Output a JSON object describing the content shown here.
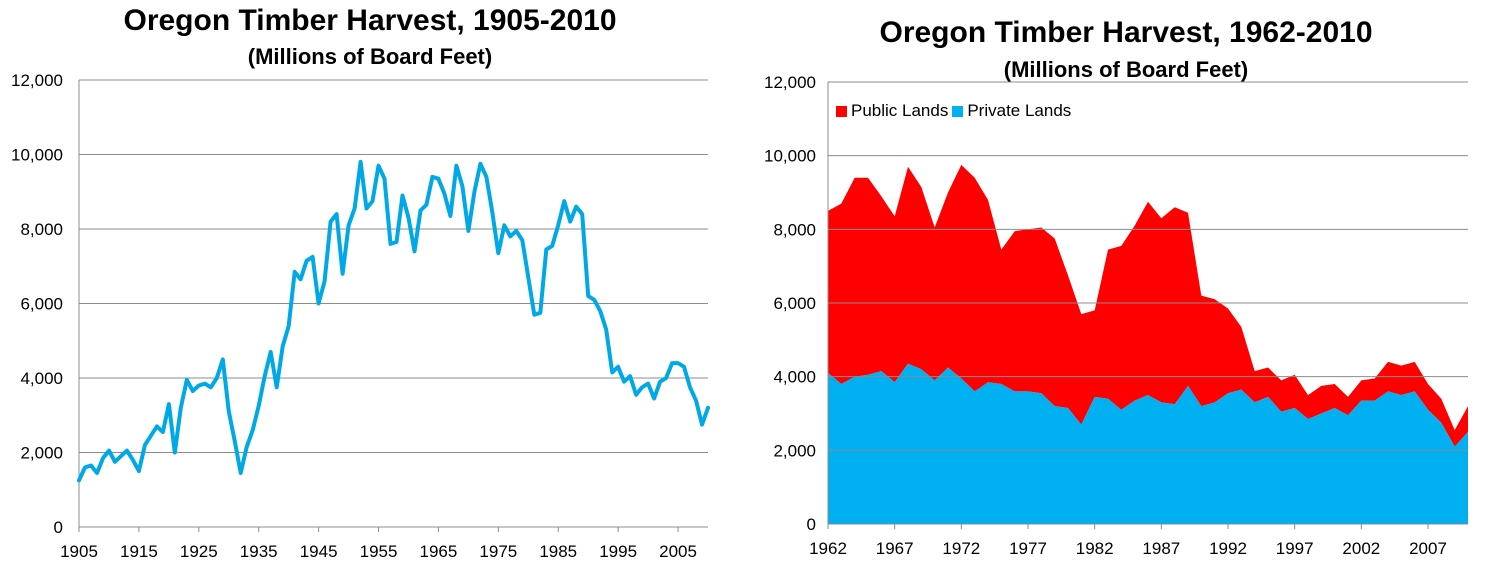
{
  "chart_data": [
    {
      "type": "line",
      "title": "Oregon Timber Harvest, 1905-2010",
      "subtitle": "(Millions of Board Feet)",
      "xlabel": "",
      "ylabel": "",
      "xlim": [
        1905,
        2010
      ],
      "ylim": [
        0,
        12000
      ],
      "yticks": [
        "0",
        "2,000",
        "4,000",
        "6,000",
        "8,000",
        "10,000",
        "12,000"
      ],
      "xticks": [
        "1905",
        "1915",
        "1925",
        "1935",
        "1945",
        "1955",
        "1965",
        "1975",
        "1985",
        "1995",
        "2005"
      ],
      "grid": true,
      "legend": "none",
      "colors": {
        "line": "#00A9E6",
        "grid": "#8C8C8C"
      },
      "series": [
        {
          "x": [
            1905,
            1906,
            1907,
            1908,
            1909,
            1910,
            1911,
            1912,
            1913,
            1914,
            1915,
            1916,
            1917,
            1918,
            1919,
            1920,
            1921,
            1922,
            1923,
            1924,
            1925,
            1926,
            1927,
            1928,
            1929,
            1930,
            1931,
            1932,
            1933,
            1934,
            1935,
            1936,
            1937,
            1938,
            1939,
            1940,
            1941,
            1942,
            1943,
            1944,
            1945,
            1946,
            1947,
            1948,
            1949,
            1950,
            1951,
            1952,
            1953,
            1954,
            1955,
            1956,
            1957,
            1958,
            1959,
            1960,
            1961,
            1962,
            1963,
            1964,
            1965,
            1966,
            1967,
            1968,
            1969,
            1970,
            1971,
            1972,
            1973,
            1974,
            1975,
            1976,
            1977,
            1978,
            1979,
            1980,
            1981,
            1982,
            1983,
            1984,
            1985,
            1986,
            1987,
            1988,
            1989,
            1990,
            1991,
            1992,
            1993,
            1994,
            1995,
            1996,
            1997,
            1998,
            1999,
            2000,
            2001,
            2002,
            2003,
            2004,
            2005,
            2006,
            2007,
            2008,
            2009,
            2010
          ],
          "values": [
            1250,
            1600,
            1650,
            1450,
            1850,
            2050,
            1750,
            1900,
            2050,
            1800,
            1500,
            2200,
            2450,
            2700,
            2550,
            3300,
            2000,
            3200,
            3950,
            3650,
            3800,
            3850,
            3750,
            4000,
            4500,
            3100,
            2300,
            1450,
            2150,
            2600,
            3250,
            4050,
            4700,
            3750,
            4850,
            5400,
            6850,
            6650,
            7150,
            7250,
            6000,
            6600,
            8200,
            8400,
            6800,
            8100,
            8550,
            9800,
            8550,
            8750,
            9700,
            9350,
            7600,
            7650,
            8900,
            8300,
            7400,
            8500,
            8650,
            9400,
            9350,
            8950,
            8350,
            9700,
            9150,
            7950,
            9000,
            9750,
            9400,
            8450,
            7350,
            8100,
            7800,
            7950,
            7700,
            6700,
            5700,
            5750,
            7450,
            7550,
            8100,
            8750,
            8200,
            8600,
            8400,
            6200,
            6100,
            5800,
            5300,
            4150,
            4300,
            3900,
            4050,
            3550,
            3750,
            3850,
            3450,
            3900,
            4000,
            4400,
            4400,
            4300,
            3750,
            3400,
            2750,
            3200
          ]
        }
      ]
    },
    {
      "type": "area",
      "stacked": true,
      "title": "Oregon Timber Harvest, 1962-2010",
      "subtitle": "(Millions of Board Feet)",
      "xlabel": "",
      "ylabel": "",
      "xlim": [
        1962,
        2010
      ],
      "ylim": [
        0,
        12000
      ],
      "yticks": [
        "0",
        "2,000",
        "4,000",
        "6,000",
        "8,000",
        "10,000",
        "12,000"
      ],
      "xticks": [
        "1962",
        "1967",
        "1972",
        "1977",
        "1982",
        "1987",
        "1992",
        "1997",
        "2002",
        "2007"
      ],
      "grid": true,
      "legend": "top-left",
      "x": [
        1962,
        1963,
        1964,
        1965,
        1966,
        1967,
        1968,
        1969,
        1970,
        1971,
        1972,
        1973,
        1974,
        1975,
        1976,
        1977,
        1978,
        1979,
        1980,
        1981,
        1982,
        1983,
        1984,
        1985,
        1986,
        1987,
        1988,
        1989,
        1990,
        1991,
        1992,
        1993,
        1994,
        1995,
        1996,
        1997,
        1998,
        1999,
        2000,
        2001,
        2002,
        2003,
        2004,
        2005,
        2006,
        2007,
        2008,
        2009,
        2010
      ],
      "series": [
        {
          "name": "Public Lands",
          "color": "#FF0000",
          "values": [
            4400,
            4900,
            5400,
            5350,
            4750,
            4500,
            5350,
            4950,
            4150,
            4750,
            5800,
            5800,
            4950,
            3650,
            4350,
            4400,
            4500,
            4550,
            3600,
            3000,
            2350,
            4050,
            4450,
            4750,
            5250,
            5000,
            5350,
            4700,
            3000,
            2800,
            2300,
            1700,
            850,
            800,
            850,
            900,
            650,
            750,
            650,
            500,
            550,
            600,
            800,
            800,
            800,
            700,
            650,
            450,
            700
          ]
        },
        {
          "name": "Private Lands",
          "color": "#00B0F0",
          "values": [
            4100,
            3800,
            4000,
            4050,
            4150,
            3850,
            4350,
            4200,
            3900,
            4250,
            3950,
            3600,
            3850,
            3800,
            3600,
            3600,
            3550,
            3200,
            3150,
            2700,
            3450,
            3400,
            3100,
            3350,
            3500,
            3300,
            3250,
            3750,
            3200,
            3300,
            3550,
            3650,
            3300,
            3450,
            3050,
            3150,
            2850,
            3000,
            3150,
            2950,
            3350,
            3350,
            3600,
            3500,
            3600,
            3100,
            2750,
            2100,
            2500
          ]
        }
      ]
    }
  ]
}
